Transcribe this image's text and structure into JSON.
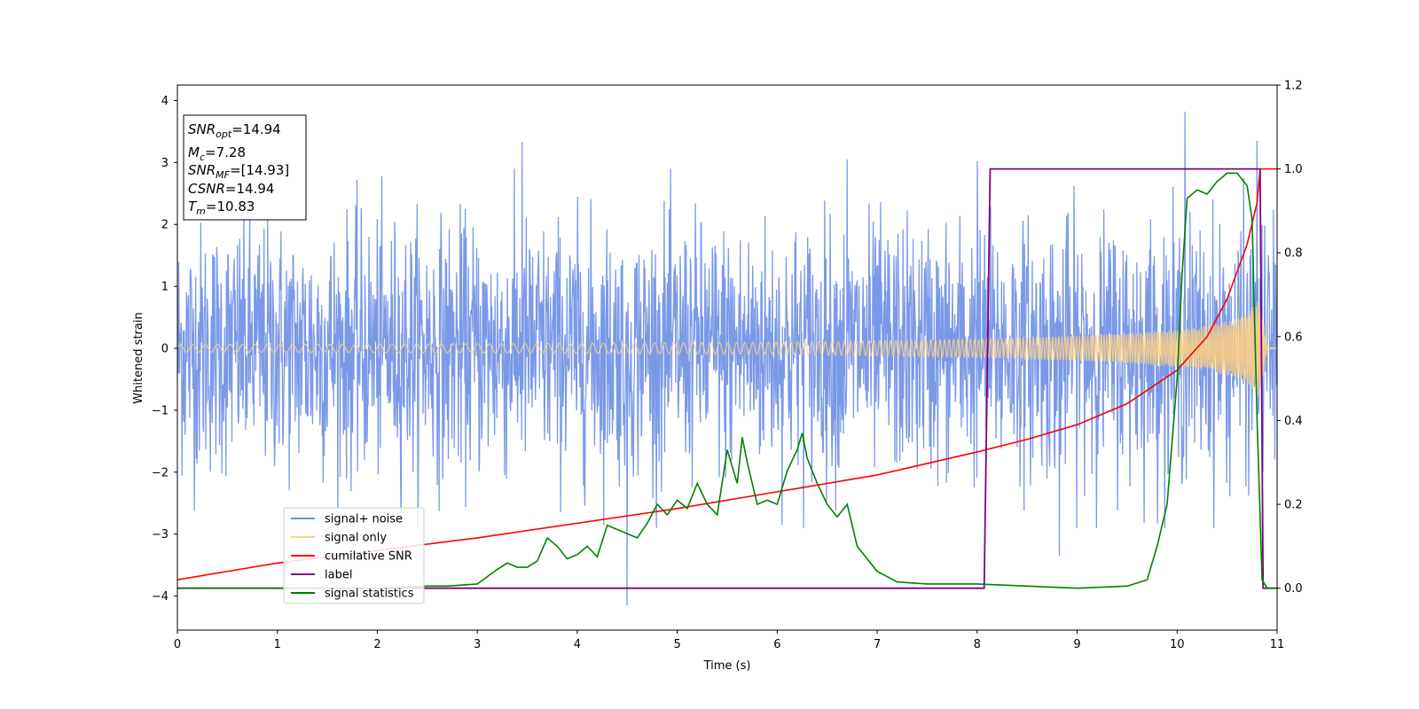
{
  "chart_data": {
    "type": "line",
    "xlabel": "Time (s)",
    "ylabel": "Whitened strain",
    "xlim": [
      0,
      11
    ],
    "ylim_left": [
      -4.55,
      4.25
    ],
    "ylim_right": [
      -0.1,
      1.2
    ],
    "x_ticks": [
      "0",
      "1",
      "2",
      "3",
      "4",
      "5",
      "6",
      "7",
      "8",
      "9",
      "10",
      "11"
    ],
    "y_left_ticks": [
      "−4",
      "−3",
      "−2",
      "−1",
      "0",
      "1",
      "2",
      "3",
      "4"
    ],
    "y_right_ticks": [
      "0.0",
      "0.2",
      "0.4",
      "0.6",
      "0.8",
      "1.0",
      "1.2"
    ],
    "legend_position": "lower-left",
    "legend": [
      {
        "label": "signal+ noise",
        "color": "#6c8ee6"
      },
      {
        "label": "signal only",
        "color": "#ffd080"
      },
      {
        "label": "cumilative SNR",
        "color": "#ff0000"
      },
      {
        "label": "label",
        "color": "#800080"
      },
      {
        "label": "signal statistics",
        "color": "#008000"
      }
    ],
    "info_box": {
      "snr_opt": {
        "name": "SNR",
        "sub": "opt",
        "value": "=14.94"
      },
      "mc": {
        "name": "M",
        "sub": "c",
        "value": "=7.28"
      },
      "snr_mf": {
        "name": "SNR",
        "sub": "MF",
        "value": "=[14.93]"
      },
      "csnr": {
        "name": "CSNR",
        "value": "=14.94"
      },
      "tm": {
        "name": "T",
        "sub": "m",
        "value": "=10.83"
      }
    },
    "series": [
      {
        "name": "signal+ noise",
        "axis": "left",
        "color": "#6c8ee6",
        "description": "whitened noisy strain, roughly Gaussian with sigma≈1",
        "spread_approx": 1.0,
        "notable_peaks": [
          [
            3.45,
            3.33
          ],
          [
            4.5,
            -4.15
          ],
          [
            6.7,
            3.05
          ],
          [
            8.0,
            3.02
          ],
          [
            10.08,
            3.82
          ],
          [
            10.8,
            3.35
          ],
          [
            8.82,
            -3.35
          ]
        ]
      },
      {
        "name": "signal only",
        "axis": "left",
        "color": "#ffd080",
        "description": "chirp waveform, amplitude envelope growing to merger",
        "envelope": {
          "x": [
            0,
            2,
            4,
            6,
            7,
            8,
            9,
            9.5,
            10,
            10.3,
            10.6,
            10.75,
            10.83,
            10.9,
            11
          ],
          "amp": [
            0.06,
            0.07,
            0.08,
            0.1,
            0.12,
            0.15,
            0.2,
            0.24,
            0.3,
            0.36,
            0.48,
            0.65,
            0.8,
            0.02,
            0.0
          ]
        }
      },
      {
        "name": "cumilative SNR",
        "axis": "right",
        "color": "#ff0000",
        "x": [
          0,
          0.5,
          1,
          2,
          3,
          4,
          5,
          6,
          7,
          8,
          8.5,
          9,
          9.5,
          10,
          10.3,
          10.5,
          10.7,
          10.8,
          10.83,
          11
        ],
        "y": [
          0.02,
          0.04,
          0.06,
          0.09,
          0.12,
          0.155,
          0.19,
          0.23,
          0.27,
          0.325,
          0.355,
          0.39,
          0.44,
          0.52,
          0.6,
          0.69,
          0.82,
          0.92,
          1.0,
          1.0
        ]
      },
      {
        "name": "label",
        "axis": "right",
        "color": "#800080",
        "x": [
          0,
          8.07,
          8.13,
          10.83,
          10.86,
          11
        ],
        "y": [
          0.0,
          0.0,
          1.0,
          1.0,
          0.0,
          0.0
        ]
      },
      {
        "name": "signal statistics",
        "axis": "right",
        "color": "#008000",
        "x": [
          0,
          0.5,
          1,
          1.5,
          2,
          2.5,
          2.7,
          3,
          3.2,
          3.3,
          3.4,
          3.5,
          3.6,
          3.7,
          3.8,
          3.9,
          4.0,
          4.1,
          4.2,
          4.3,
          4.4,
          4.5,
          4.6,
          4.7,
          4.8,
          4.9,
          5.0,
          5.1,
          5.2,
          5.3,
          5.4,
          5.5,
          5.6,
          5.65,
          5.7,
          5.8,
          5.9,
          6.0,
          6.1,
          6.2,
          6.25,
          6.3,
          6.4,
          6.5,
          6.6,
          6.7,
          6.8,
          7.0,
          7.2,
          7.5,
          8.0,
          8.5,
          9.0,
          9.5,
          9.7,
          9.8,
          9.9,
          10.0,
          10.05,
          10.1,
          10.2,
          10.3,
          10.4,
          10.5,
          10.6,
          10.7,
          10.75,
          10.8,
          10.85,
          10.9,
          11
        ],
        "y": [
          0.0,
          0.0,
          0.0,
          0.0,
          0.0,
          0.005,
          0.005,
          0.01,
          0.045,
          0.06,
          0.05,
          0.05,
          0.065,
          0.12,
          0.1,
          0.07,
          0.08,
          0.1,
          0.075,
          0.15,
          0.14,
          0.13,
          0.12,
          0.155,
          0.2,
          0.175,
          0.21,
          0.19,
          0.25,
          0.2,
          0.175,
          0.33,
          0.25,
          0.36,
          0.3,
          0.2,
          0.21,
          0.2,
          0.28,
          0.33,
          0.37,
          0.31,
          0.25,
          0.2,
          0.17,
          0.2,
          0.1,
          0.04,
          0.015,
          0.01,
          0.01,
          0.005,
          0.0,
          0.005,
          0.02,
          0.1,
          0.2,
          0.5,
          0.75,
          0.93,
          0.95,
          0.94,
          0.97,
          0.99,
          0.99,
          0.96,
          0.88,
          0.4,
          0.02,
          0.0,
          0.0
        ]
      }
    ]
  }
}
